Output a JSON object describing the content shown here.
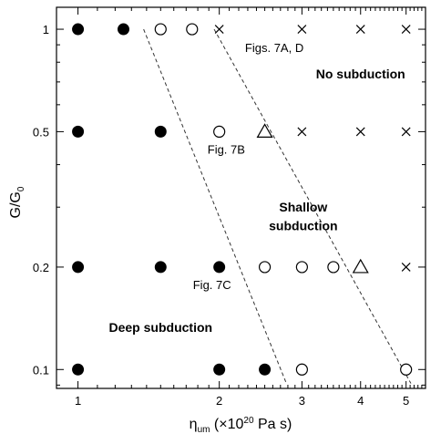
{
  "chart_data": {
    "type": "scatter",
    "x_scale": "log",
    "y_scale": "log",
    "xlim": [
      0.9,
      5.5
    ],
    "ylim": [
      0.088,
      1.16
    ],
    "grid": false,
    "legend": "none",
    "x_ticks": [
      1,
      2,
      3,
      4,
      5
    ],
    "x_tick_labels": [
      "1",
      "2",
      "3",
      "4",
      "5"
    ],
    "y_ticks": [
      0.1,
      0.2,
      0.5,
      1
    ],
    "y_tick_labels": [
      "0.1",
      "0.2",
      "0.5",
      "1"
    ],
    "xlabel": {
      "main": "η",
      "sub": "um",
      "rest": " (×10",
      "exp": "20",
      "unit": " Pa s)"
    },
    "ylabel": {
      "main": "G/G",
      "sub": "0"
    },
    "series": [
      {
        "marker": "filled-circle",
        "points": [
          [
            1,
            1
          ],
          [
            1.25,
            1
          ],
          [
            1,
            0.5
          ],
          [
            1.5,
            0.5
          ],
          [
            1,
            0.2
          ],
          [
            1.5,
            0.2
          ],
          [
            2,
            0.2
          ],
          [
            1,
            0.1
          ],
          [
            2,
            0.1
          ],
          [
            2.5,
            0.1
          ]
        ]
      },
      {
        "marker": "open-circle",
        "points": [
          [
            1.5,
            1
          ],
          [
            1.75,
            1
          ],
          [
            2,
            0.5
          ],
          [
            2.5,
            0.2
          ],
          [
            3,
            0.2
          ],
          [
            3.5,
            0.2
          ],
          [
            3,
            0.1
          ],
          [
            5,
            0.1
          ]
        ]
      },
      {
        "marker": "open-triangle",
        "points": [
          [
            2.5,
            0.5
          ],
          [
            4,
            0.2
          ]
        ]
      },
      {
        "marker": "cross",
        "points": [
          [
            2,
            1
          ],
          [
            3,
            1
          ],
          [
            4,
            1
          ],
          [
            5,
            1
          ],
          [
            3,
            0.5
          ],
          [
            4,
            0.5
          ],
          [
            5,
            0.5
          ],
          [
            5,
            0.2
          ]
        ]
      }
    ],
    "boundaries": [
      {
        "style": "dashed",
        "from": [
          1.38,
          1.0
        ],
        "to": [
          2.78,
          0.091
        ]
      },
      {
        "style": "dashed",
        "from": [
          1.95,
          1.0
        ],
        "to": [
          5.12,
          0.091
        ]
      }
    ],
    "annotations": [
      {
        "text": "Figs. 7A, D",
        "at": [
          2.62,
          0.885
        ]
      },
      {
        "text": "Fig. 7B",
        "at": [
          2.07,
          0.445
        ]
      },
      {
        "text": "Fig. 7C",
        "at": [
          1.93,
          0.178
        ]
      }
    ],
    "region_labels": [
      {
        "text": "No subduction",
        "at": [
          4.0,
          0.74
        ]
      },
      {
        "text": "Shallow",
        "at": [
          3.02,
          0.3
        ]
      },
      {
        "text": "subduction",
        "at": [
          3.02,
          0.265
        ]
      },
      {
        "text": "Deep subduction",
        "at": [
          1.5,
          0.133
        ]
      }
    ]
  }
}
